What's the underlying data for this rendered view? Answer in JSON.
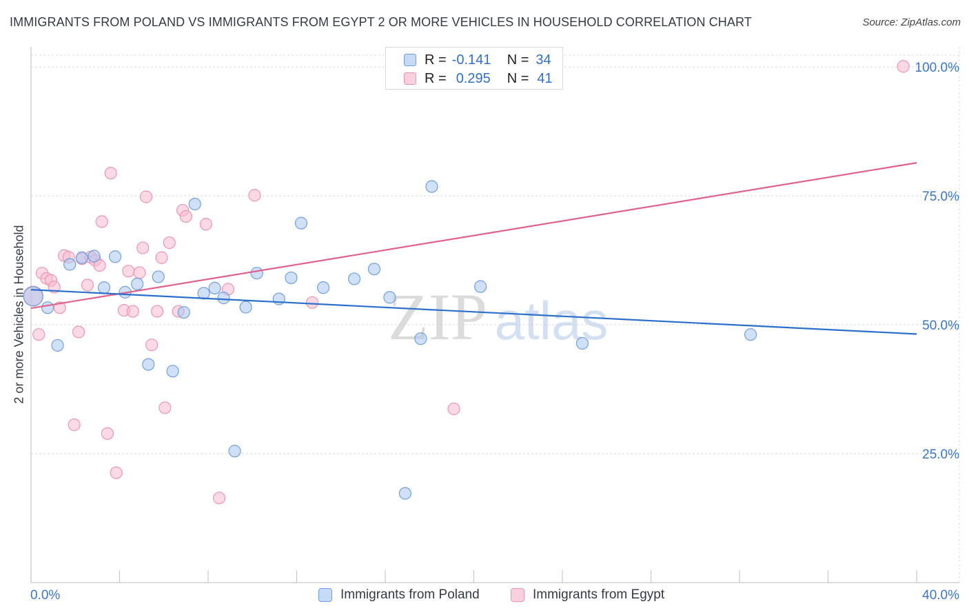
{
  "title": "IMMIGRANTS FROM POLAND VS IMMIGRANTS FROM EGYPT 2 OR MORE VEHICLES IN HOUSEHOLD CORRELATION CHART",
  "source": "Source: ZipAtlas.com",
  "watermark": {
    "zip": "ZIP",
    "atlas": "atlas"
  },
  "legend": {
    "rows": [
      {
        "r_label": "R =",
        "r_value": "-0.141",
        "n_label": "N =",
        "n_value": "34"
      },
      {
        "r_label": "R =",
        "r_value": "0.295",
        "n_label": "N =",
        "n_value": "41"
      }
    ]
  },
  "colors": {
    "poland_fill": "#aac8f0",
    "poland_stroke": "#6f9fe0",
    "poland_line": "#2b6fcc",
    "egypt_fill": "#f7bcd0",
    "egypt_stroke": "#ee94b2",
    "egypt_line": "#e0608a",
    "axis_text": "#3a76cc",
    "grid": "#d8d8d8"
  },
  "chart_data": {
    "type": "scatter",
    "title": "IMMIGRANTS FROM POLAND VS IMMIGRANTS FROM EGYPT 2 OR MORE VEHICLES IN HOUSEHOLD CORRELATION CHART",
    "xlabel": "",
    "ylabel": "2 or more Vehicles in Household",
    "xlim": [
      0,
      40
    ],
    "ylim": [
      0,
      102
    ],
    "x_tick_labels": [
      "0.0%",
      "40.0%"
    ],
    "y_ticks": [
      25,
      50,
      75,
      100
    ],
    "y_tick_labels": [
      "25.0%",
      "50.0%",
      "75.0%",
      "100.0%"
    ],
    "grid": true,
    "legend_position": "top-center",
    "series": [
      {
        "name": "Immigrants from Poland",
        "r": -0.141,
        "n": 34,
        "trend": {
          "x": [
            0,
            40
          ],
          "y": [
            56.8,
            48.2
          ]
        },
        "points": [
          {
            "x": 0.1,
            "y": 55.5,
            "big": true
          },
          {
            "x": 0.75,
            "y": 53.3
          },
          {
            "x": 1.2,
            "y": 46.0
          },
          {
            "x": 1.75,
            "y": 61.7
          },
          {
            "x": 2.3,
            "y": 63.0
          },
          {
            "x": 2.85,
            "y": 63.3
          },
          {
            "x": 3.3,
            "y": 57.2
          },
          {
            "x": 3.8,
            "y": 63.2
          },
          {
            "x": 4.25,
            "y": 56.3
          },
          {
            "x": 4.8,
            "y": 57.9
          },
          {
            "x": 5.3,
            "y": 42.3
          },
          {
            "x": 5.75,
            "y": 59.3
          },
          {
            "x": 6.4,
            "y": 41.0
          },
          {
            "x": 6.9,
            "y": 52.4
          },
          {
            "x": 7.4,
            "y": 73.4
          },
          {
            "x": 7.8,
            "y": 56.1
          },
          {
            "x": 8.3,
            "y": 57.1
          },
          {
            "x": 8.7,
            "y": 55.2
          },
          {
            "x": 9.2,
            "y": 25.5
          },
          {
            "x": 9.7,
            "y": 53.4
          },
          {
            "x": 10.2,
            "y": 60.0
          },
          {
            "x": 11.2,
            "y": 55.0
          },
          {
            "x": 11.75,
            "y": 59.1
          },
          {
            "x": 12.2,
            "y": 69.7
          },
          {
            "x": 13.2,
            "y": 57.2
          },
          {
            "x": 14.6,
            "y": 58.9
          },
          {
            "x": 15.5,
            "y": 60.8
          },
          {
            "x": 16.2,
            "y": 55.3
          },
          {
            "x": 16.9,
            "y": 17.3
          },
          {
            "x": 17.6,
            "y": 47.3
          },
          {
            "x": 18.1,
            "y": 76.8
          },
          {
            "x": 20.3,
            "y": 57.4
          },
          {
            "x": 24.9,
            "y": 46.4
          },
          {
            "x": 32.5,
            "y": 48.1
          }
        ]
      },
      {
        "name": "Immigrants from Egypt",
        "r": 0.295,
        "n": 41,
        "trend": {
          "x": [
            0,
            40
          ],
          "y": [
            53.2,
            81.4
          ]
        },
        "points": [
          {
            "x": 0.1,
            "y": 55.6,
            "big": true
          },
          {
            "x": 0.35,
            "y": 48.1
          },
          {
            "x": 0.5,
            "y": 60.0
          },
          {
            "x": 0.7,
            "y": 59.0
          },
          {
            "x": 0.9,
            "y": 58.6
          },
          {
            "x": 1.05,
            "y": 57.3
          },
          {
            "x": 1.3,
            "y": 53.3
          },
          {
            "x": 1.5,
            "y": 63.4
          },
          {
            "x": 1.7,
            "y": 63.1
          },
          {
            "x": 1.95,
            "y": 30.6
          },
          {
            "x": 2.15,
            "y": 48.6
          },
          {
            "x": 2.3,
            "y": 62.8
          },
          {
            "x": 2.55,
            "y": 57.7
          },
          {
            "x": 2.7,
            "y": 63.1
          },
          {
            "x": 2.9,
            "y": 62.5
          },
          {
            "x": 3.1,
            "y": 61.5
          },
          {
            "x": 3.2,
            "y": 70.0
          },
          {
            "x": 3.45,
            "y": 28.9
          },
          {
            "x": 3.6,
            "y": 79.4
          },
          {
            "x": 3.85,
            "y": 21.3
          },
          {
            "x": 4.2,
            "y": 52.8
          },
          {
            "x": 4.4,
            "y": 60.4
          },
          {
            "x": 4.6,
            "y": 52.6
          },
          {
            "x": 4.9,
            "y": 60.1
          },
          {
            "x": 5.05,
            "y": 64.9
          },
          {
            "x": 5.2,
            "y": 74.8
          },
          {
            "x": 5.45,
            "y": 46.1
          },
          {
            "x": 5.7,
            "y": 52.6
          },
          {
            "x": 5.9,
            "y": 63.0
          },
          {
            "x": 6.05,
            "y": 33.9
          },
          {
            "x": 6.25,
            "y": 65.9
          },
          {
            "x": 6.65,
            "y": 52.6
          },
          {
            "x": 6.85,
            "y": 72.2
          },
          {
            "x": 7.0,
            "y": 71.0
          },
          {
            "x": 7.9,
            "y": 69.5
          },
          {
            "x": 8.5,
            "y": 16.4
          },
          {
            "x": 8.9,
            "y": 56.9
          },
          {
            "x": 10.1,
            "y": 75.1
          },
          {
            "x": 12.7,
            "y": 54.3
          },
          {
            "x": 19.1,
            "y": 33.7
          },
          {
            "x": 39.4,
            "y": 100.1
          }
        ]
      }
    ]
  }
}
